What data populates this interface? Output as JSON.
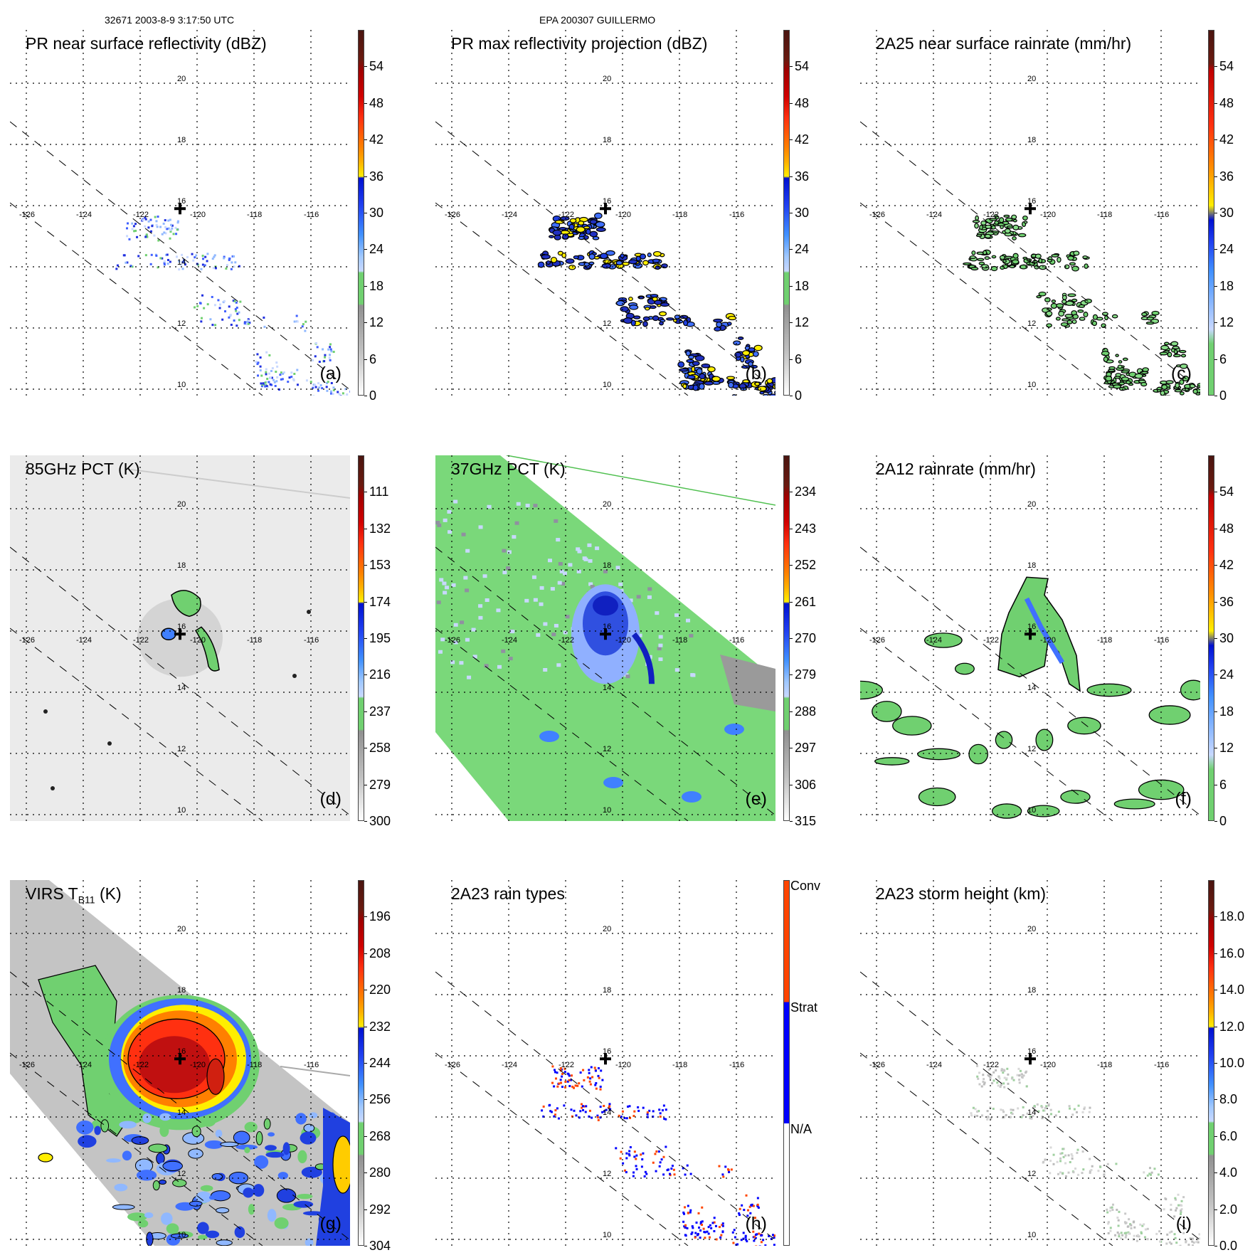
{
  "header": {
    "orbit_time": "32671 2003-8-9 3:17:50 UTC",
    "storm": "EPA 200307 GUILLERMO"
  },
  "map_grid": {
    "lon_labels": [
      "-126",
      "-124",
      "-122",
      "-120",
      "-118",
      "-116"
    ],
    "lat_labels": [
      "20",
      "18",
      "16",
      "14",
      "12",
      "10"
    ]
  },
  "palettes": {
    "standard": [
      "#4a1510",
      "#a00000",
      "#ff3010",
      "#ff8000",
      "#ffee00",
      "#0010d0",
      "#4090ff",
      "#c8d8ff",
      "#70d070",
      "#909090",
      "#ffffff"
    ],
    "rain": [
      "#4a1510",
      "#c00000",
      "#ff3010",
      "#ff9000",
      "#ffee00",
      "#0010d0",
      "#4090ff",
      "#c8d8ff",
      "#70d070"
    ],
    "types": [
      "#ff4500",
      "#0000ff",
      "#ffffff"
    ]
  },
  "panels": [
    {
      "id": "a",
      "title": "PR near surface reflectivity (dBZ)",
      "letter": "(a)",
      "cbar": "standard",
      "labels": [
        "54",
        "48",
        "42",
        "36",
        "30",
        "24",
        "18",
        "12",
        "6",
        "0"
      ],
      "kind": "pr-speckle"
    },
    {
      "id": "b",
      "title": "PR max reflectivity projection (dBZ)",
      "letter": "(b)",
      "cbar": "standard",
      "labels": [
        "54",
        "48",
        "42",
        "36",
        "30",
        "24",
        "18",
        "12",
        "6",
        "0"
      ],
      "kind": "pr-outline-blue"
    },
    {
      "id": "c",
      "title": "2A25 near surface rainrate (mm/hr)",
      "letter": "(c)",
      "cbar": "rain",
      "labels": [
        "54",
        "48",
        "42",
        "36",
        "30",
        "24",
        "18",
        "12",
        "6",
        "0"
      ],
      "kind": "pr-outline-green"
    },
    {
      "id": "d",
      "title": "85GHz PCT (K)",
      "letter": "(d)",
      "cbar": "standard",
      "labels": [
        "111",
        "132",
        "153",
        "174",
        "195",
        "216",
        "237",
        "258",
        "279",
        "300"
      ],
      "kind": "tmi85"
    },
    {
      "id": "e",
      "title": "37GHz PCT (K)",
      "letter": "(e)",
      "cbar": "standard",
      "labels": [
        "234",
        "243",
        "252",
        "261",
        "270",
        "279",
        "288",
        "297",
        "306",
        "315"
      ],
      "kind": "tmi37"
    },
    {
      "id": "f",
      "title": "2A12 rainrate (mm/hr)",
      "letter": "(f)",
      "cbar": "rain",
      "labels": [
        "54",
        "48",
        "42",
        "36",
        "30",
        "24",
        "18",
        "12",
        "6",
        "0"
      ],
      "kind": "tmirain"
    },
    {
      "id": "g",
      "title": "VIRS T",
      "title_sub": "B11",
      "title_suffix": " (K)",
      "letter": "(g)",
      "cbar": "standard",
      "labels": [
        "196",
        "208",
        "220",
        "232",
        "244",
        "256",
        "268",
        "280",
        "292",
        "304"
      ],
      "kind": "virs"
    },
    {
      "id": "h",
      "title": "2A23 rain types",
      "letter": "(h)",
      "cbar": "types",
      "type_labels": [
        "Conv",
        "Strat",
        "N/A"
      ],
      "kind": "pr-types"
    },
    {
      "id": "i",
      "title": "2A23 storm height (km)",
      "letter": "(i)",
      "cbar": "standard",
      "labels": [
        "18.0",
        "16.0",
        "14.0",
        "12.0",
        "10.0",
        "8.0",
        "6.0",
        "4.0",
        "2.0",
        "0.0"
      ],
      "kind": "pr-height"
    }
  ]
}
